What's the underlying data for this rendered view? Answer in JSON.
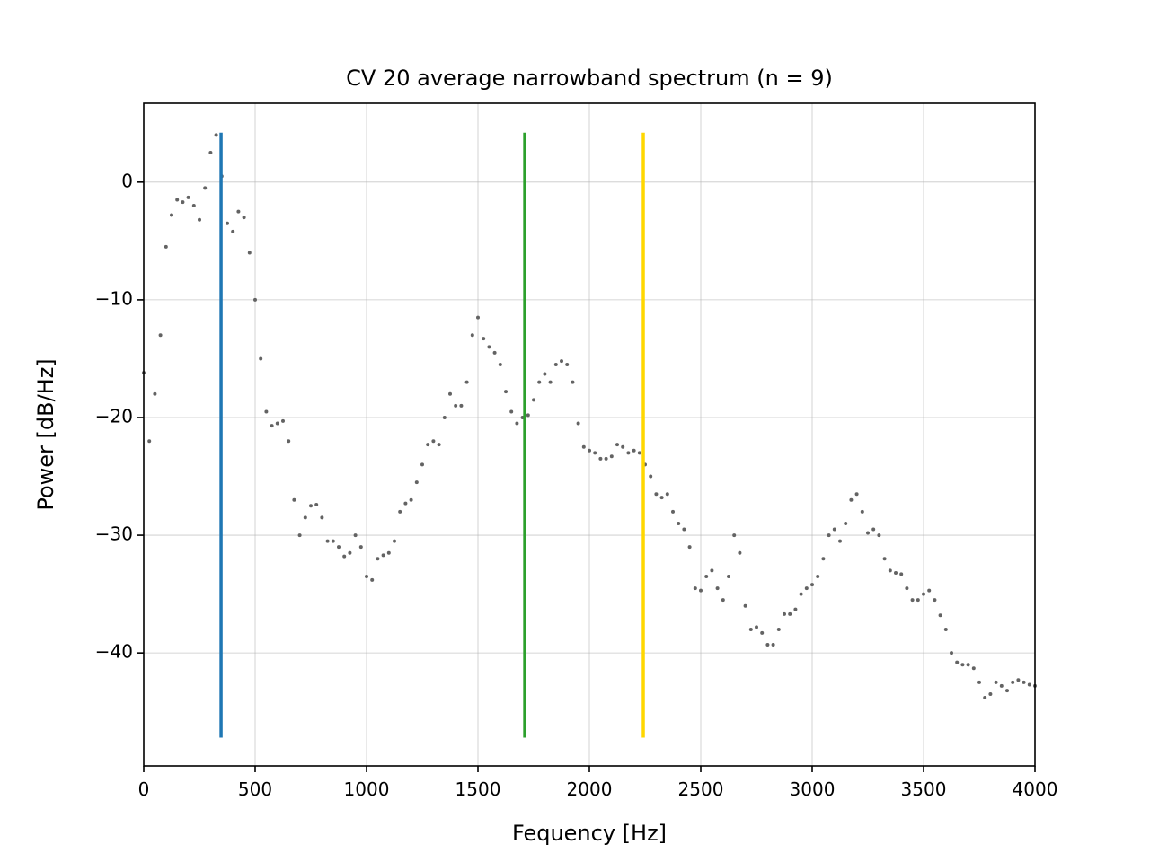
{
  "chart_data": {
    "type": "scatter",
    "title": "CV 20 average narrowband spectrum (n = 9)",
    "x_label": "Fequency [Hz]",
    "y_label": "Power [dB/Hz]",
    "xlim": [
      0,
      4000
    ],
    "ylim": [
      -49.6,
      6.7
    ],
    "xticks": [
      0,
      500,
      1000,
      1500,
      2000,
      2500,
      3000,
      3500,
      4000
    ],
    "yticks": [
      {
        "value": -40,
        "label": "−40"
      },
      {
        "value": -30,
        "label": "−30"
      },
      {
        "value": -20,
        "label": "−20"
      },
      {
        "value": -10,
        "label": "−10"
      },
      0
    ],
    "grid": true,
    "x": [
      0,
      25,
      50,
      75,
      100,
      125,
      150,
      175,
      200,
      225,
      250,
      275,
      300,
      325,
      350,
      375,
      400,
      425,
      450,
      475,
      500,
      525,
      550,
      575,
      600,
      625,
      650,
      675,
      700,
      725,
      750,
      775,
      800,
      825,
      850,
      875,
      900,
      925,
      950,
      975,
      1000,
      1025,
      1050,
      1075,
      1100,
      1125,
      1150,
      1175,
      1200,
      1225,
      1250,
      1275,
      1300,
      1325,
      1350,
      1375,
      1400,
      1425,
      1450,
      1475,
      1500,
      1525,
      1550,
      1575,
      1600,
      1625,
      1650,
      1675,
      1700,
      1725,
      1750,
      1775,
      1800,
      1825,
      1850,
      1875,
      1900,
      1925,
      1950,
      1975,
      2000,
      2025,
      2050,
      2075,
      2100,
      2125,
      2150,
      2175,
      2200,
      2225,
      2250,
      2275,
      2300,
      2325,
      2350,
      2375,
      2400,
      2425,
      2450,
      2475,
      2500,
      2525,
      2550,
      2575,
      2600,
      2625,
      2650,
      2675,
      2700,
      2725,
      2750,
      2775,
      2800,
      2825,
      2850,
      2875,
      2900,
      2925,
      2950,
      2975,
      3000,
      3025,
      3050,
      3075,
      3100,
      3125,
      3150,
      3175,
      3200,
      3225,
      3250,
      3275,
      3300,
      3325,
      3350,
      3375,
      3400,
      3425,
      3450,
      3475,
      3500,
      3525,
      3550,
      3575,
      3600,
      3625,
      3650,
      3675,
      3700,
      3725,
      3750,
      3775,
      3800,
      3825,
      3850,
      3875,
      3900,
      3925,
      3950,
      3975,
      4000
    ],
    "series": [
      {
        "color": "#636363",
        "values": [
          -16.2,
          -22,
          -18,
          -13,
          -5.5,
          -2.8,
          -1.5,
          -1.7,
          -1.3,
          -2,
          -3.2,
          -0.5,
          2.5,
          4,
          0.5,
          -3.5,
          -4.2,
          -2.5,
          -3,
          -6,
          -10,
          -15,
          -19.5,
          -20.7,
          -20.5,
          -20.3,
          -22,
          -27,
          -30,
          -28.5,
          -27.5,
          -27.4,
          -28.5,
          -30.5,
          -30.5,
          -31,
          -31.8,
          -31.5,
          -30,
          -31,
          -33.5,
          -33.8,
          -32,
          -31.7,
          -31.5,
          -30.5,
          -28,
          -27.3,
          -27,
          -25.5,
          -24,
          -22.3,
          -22,
          -22.3,
          -20,
          -18,
          -19,
          -19,
          -17,
          -13,
          -11.5,
          -13.3,
          -14,
          -14.5,
          -15.5,
          -17.8,
          -19.5,
          -20.5,
          -20,
          -19.8,
          -18.5,
          -17,
          -16.3,
          -17,
          -15.5,
          -15.2,
          -15.5,
          -17,
          -20.5,
          -22.5,
          -22.8,
          -23,
          -23.5,
          -23.5,
          -23.3,
          -22.3,
          -22.5,
          -23,
          -22.8,
          -23,
          -24,
          -25,
          -26.5,
          -26.8,
          -26.5,
          -28,
          -29,
          -29.5,
          -31,
          -34.5,
          -34.7,
          -33.5,
          -33,
          -34.5,
          -35.5,
          -33.5,
          -30,
          -31.5,
          -36,
          -38,
          -37.8,
          -38.3,
          -39.3,
          -39.3,
          -38,
          -36.7,
          -36.7,
          -36.3,
          -35,
          -34.5,
          -34.2,
          -33.5,
          -32,
          -30,
          -29.5,
          -30.5,
          -29,
          -27,
          -26.5,
          -28,
          -29.8,
          -29.5,
          -30,
          -32,
          -33,
          -33.2,
          -33.3,
          -34.5,
          -35.5,
          -35.5,
          -35,
          -34.7,
          -35.5,
          -36.8,
          -38,
          -40,
          -40.8,
          -41,
          -41,
          -41.3,
          -42.5,
          -43.8,
          -43.5,
          -42.5,
          -42.8,
          -43.2,
          -42.5,
          -42.3,
          -42.5,
          -42.7,
          -42.8
        ]
      }
    ],
    "vlines": [
      {
        "x": 347,
        "ymin": -47.2,
        "ymax": 4.2,
        "color": "#1f77b4"
      },
      {
        "x": 1710,
        "ymin": -47.2,
        "ymax": 4.2,
        "color": "#2ca02c"
      },
      {
        "x": 2242,
        "ymin": -47.2,
        "ymax": 4.2,
        "color": "#ffd700"
      }
    ]
  }
}
